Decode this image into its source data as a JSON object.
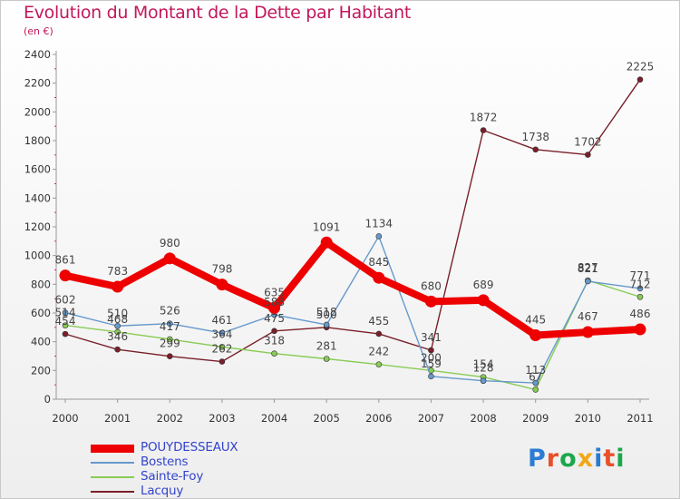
{
  "title": "Evolution du Montant de la Dette par Habitant",
  "subtitle": "(en €)",
  "logo": {
    "text": "Proxiti",
    "letter_colors": [
      "#2b7cd3",
      "#e8502a",
      "#1aa84a",
      "#f0a818",
      "#2b7cd3",
      "#e8502a",
      "#1aa84a"
    ]
  },
  "chart_data": {
    "type": "line",
    "x": [
      "2000",
      "2001",
      "2002",
      "2003",
      "2004",
      "2005",
      "2006",
      "2007",
      "2008",
      "2009",
      "2010",
      "2011"
    ],
    "ylim": [
      0,
      2400
    ],
    "yticks": [
      "0",
      "200",
      "400",
      "600",
      "800",
      "1000",
      "1200",
      "1400",
      "1600",
      "1800",
      "2000",
      "2200",
      "2400"
    ],
    "grid": false,
    "legend_placement": "bottom-left",
    "series": [
      {
        "name": "Lacquy",
        "color": "#7a1f2a",
        "values": [
          454,
          346,
          299,
          262,
          475,
          500,
          455,
          341,
          1872,
          1738,
          1702,
          2225
        ],
        "labels": [
          "454",
          "346",
          "299",
          "262",
          "475",
          "500",
          "455",
          "341",
          "1872",
          "1738",
          "1702",
          "2225"
        ]
      },
      {
        "name": "Sainte-Foy",
        "color": "#88cc55",
        "values": [
          514,
          468,
          417,
          364,
          318,
          281,
          242,
          200,
          154,
          67,
          827,
          712
        ],
        "labels": [
          "514",
          "468",
          "417",
          "364",
          "318",
          "281",
          "242",
          "200",
          "154",
          "67",
          "827",
          "712"
        ]
      },
      {
        "name": "Bostens",
        "color": "#6699cc",
        "values": [
          602,
          510,
          526,
          461,
          588,
          518,
          1134,
          159,
          128,
          113,
          821,
          771
        ],
        "labels": [
          "602",
          "510",
          "526",
          "461",
          "588",
          "518",
          "1134",
          "159",
          "128",
          "113",
          "821",
          "771"
        ]
      },
      {
        "name": "POUYDESSEAUX",
        "color": "#ee0000",
        "values": [
          861,
          783,
          980,
          798,
          635,
          1091,
          845,
          680,
          689,
          445,
          467,
          486
        ],
        "labels": [
          "861",
          "783",
          "980",
          "798",
          "635",
          "1091",
          "845",
          "680",
          "689",
          "445",
          "467",
          "486"
        ]
      }
    ],
    "legend_order": [
      "POUYDESSEAUX",
      "Bostens",
      "Sainte-Foy",
      "Lacquy"
    ]
  }
}
